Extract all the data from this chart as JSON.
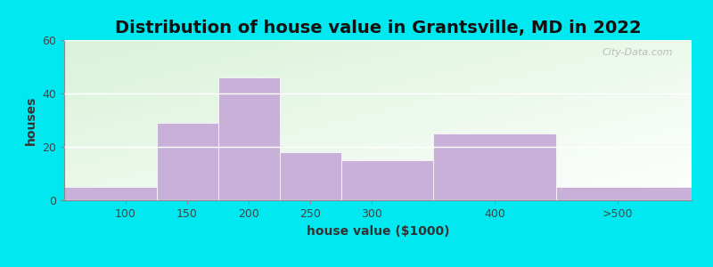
{
  "title": "Distribution of house value in Grantsville, MD in 2022",
  "xlabel": "house value ($1000)",
  "ylabel": "houses",
  "bin_edges": [
    50,
    125,
    175,
    225,
    275,
    350,
    450,
    560
  ],
  "tick_positions": [
    100,
    150,
    200,
    250,
    300,
    400,
    500
  ],
  "tick_labels": [
    "100",
    "150",
    "200",
    "250",
    "300",
    "400",
    ">500"
  ],
  "values": [
    5,
    29,
    46,
    18,
    15,
    25,
    5
  ],
  "bar_color": "#c8b0d8",
  "ylim": [
    0,
    60
  ],
  "yticks": [
    0,
    20,
    40,
    60
  ],
  "xlim": [
    50,
    560
  ],
  "background_outer": "#00e8f0",
  "title_fontsize": 14,
  "axis_label_fontsize": 10,
  "tick_fontsize": 9,
  "watermark": "City-Data.com"
}
